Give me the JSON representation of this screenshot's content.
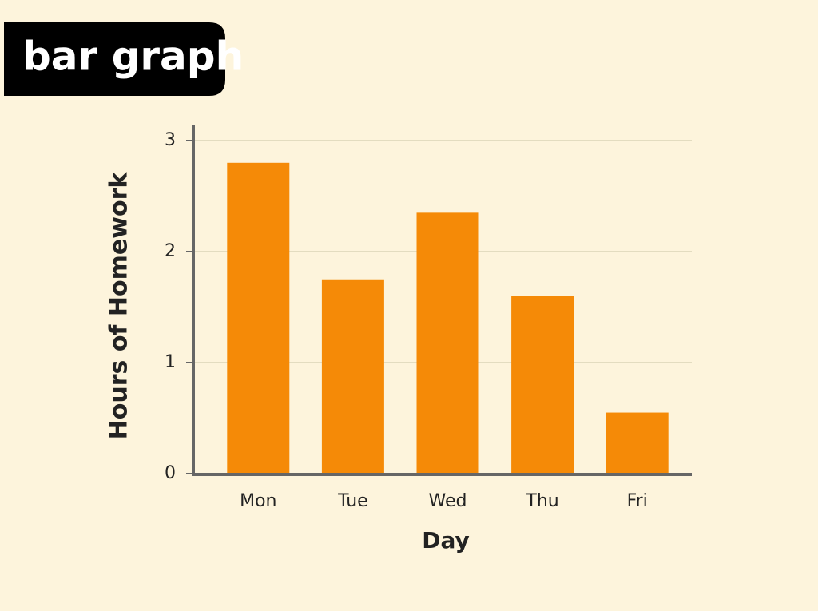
{
  "chart_data": {
    "type": "bar",
    "title": "bar graph",
    "x_label": "Day",
    "y_label": "Hours of Homework",
    "categories": [
      "Mon",
      "Tue",
      "Wed",
      "Thu",
      "Fri"
    ],
    "values": [
      2.8,
      1.75,
      2.35,
      1.6,
      0.55
    ],
    "color": "#f58a07",
    "ylim": [
      0,
      3
    ],
    "yticks": [
      0,
      1,
      2,
      3
    ],
    "grid": true
  }
}
